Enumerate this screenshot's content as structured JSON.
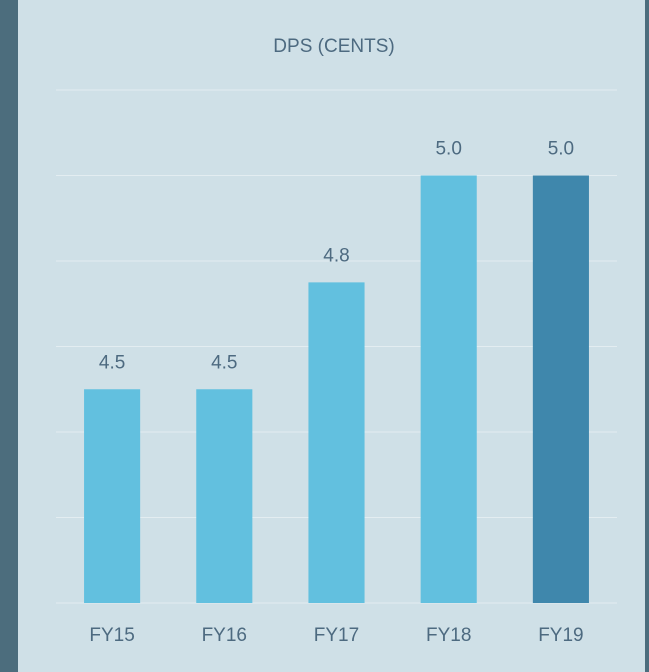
{
  "chart_data": {
    "type": "bar",
    "title": "DPS (CENTS)",
    "categories": [
      "FY15",
      "FY16",
      "FY17",
      "FY18",
      "FY19"
    ],
    "values": [
      4.5,
      4.5,
      4.75,
      5.0,
      5.0
    ],
    "value_labels": [
      "4.5",
      "4.5",
      "4.8",
      "5.0",
      "5.0"
    ],
    "colors": [
      "#62c0df",
      "#62c0df",
      "#62c0df",
      "#62c0df",
      "#3f87ac"
    ],
    "ylim": [
      4.0,
      5.2
    ],
    "yticks": [
      4.0,
      4.2,
      4.4,
      4.6,
      4.8,
      5.0,
      5.2
    ],
    "show_tick_labels": false,
    "grid": true
  }
}
